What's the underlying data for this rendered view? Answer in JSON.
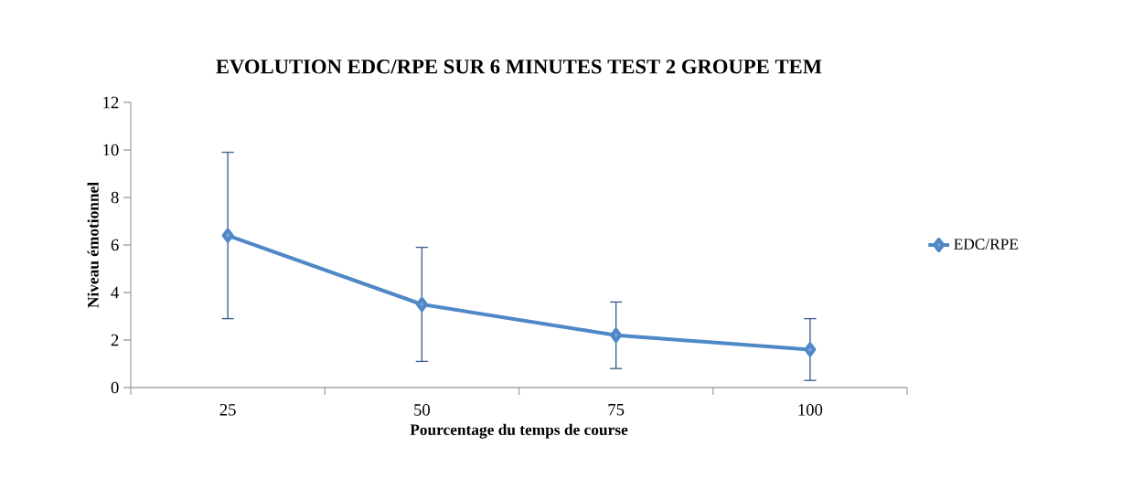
{
  "chart_data": {
    "type": "line",
    "title": "EVOLUTION EDC/RPE SUR 6 MINUTES TEST 2 GROUPE TEM",
    "xlabel": "Pourcentage du temps de course",
    "ylabel": "Niveau émotionnel",
    "categories": [
      "25",
      "50",
      "75",
      "100"
    ],
    "series": [
      {
        "name": "EDC/RPE",
        "color": "#4f88c6",
        "values": [
          6.4,
          3.5,
          2.2,
          1.6
        ],
        "errors": [
          3.5,
          2.4,
          1.4,
          1.3
        ]
      }
    ],
    "ylim": [
      0,
      12
    ],
    "yticks": [
      0,
      2,
      4,
      6,
      8,
      10,
      12
    ],
    "grid": false,
    "legend": "right",
    "marker": "diamond",
    "line_style": "solid"
  }
}
